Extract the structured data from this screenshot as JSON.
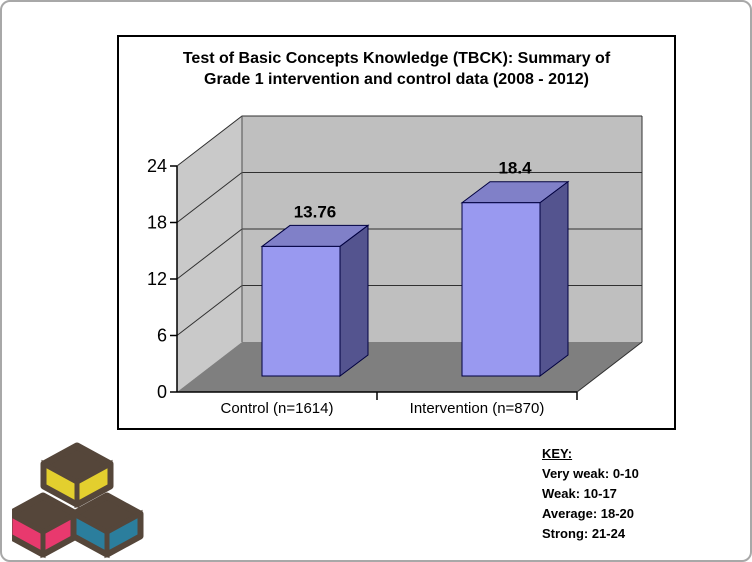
{
  "page": {
    "background": "#FFFFFF",
    "border_color": "#A8A8A8"
  },
  "chart_data": {
    "type": "bar",
    "style": "3d-column",
    "title": "Test of Basic Concepts Knowledge (TBCK): Summary of Grade 1 intervention and control data (2008 - 2012)",
    "title_lines": [
      "Test of Basic Concepts Knowledge (TBCK): Summary of",
      "Grade 1 intervention and control data (2008 - 2012)"
    ],
    "categories": [
      "Control (n=1614)",
      "Intervention (n=870)"
    ],
    "values": [
      13.76,
      18.4
    ],
    "data_labels": [
      "13.76",
      "18.4"
    ],
    "ylim": [
      0,
      24
    ],
    "yticks": [
      0,
      6,
      12,
      18,
      24
    ],
    "ytick_labels": [
      "0",
      "6",
      "12",
      "18",
      "24"
    ],
    "grid": true,
    "legend": "none",
    "colors": {
      "bar_front": "#9999F0",
      "bar_top": "#8080C8",
      "bar_side": "#54548F",
      "bar_outline": "#000040",
      "wall_back": "#BFBFBF",
      "wall_side": "#C9C9C9",
      "floor": "#7F7F7F",
      "gridline": "#303030",
      "axis": "#000000"
    }
  },
  "key_panel": {
    "heading": "KEY:",
    "entries": [
      "Very weak: 0-10",
      "Weak: 10-17",
      "Average: 18-20",
      "Strong: 21-24"
    ]
  },
  "logo": {
    "name": "three-cubes-logo",
    "colors": {
      "outline": "#55463A",
      "top_cube": "#E3CF2E",
      "left_cube": "#E8396E",
      "right_cube": "#2B7E9D"
    }
  }
}
